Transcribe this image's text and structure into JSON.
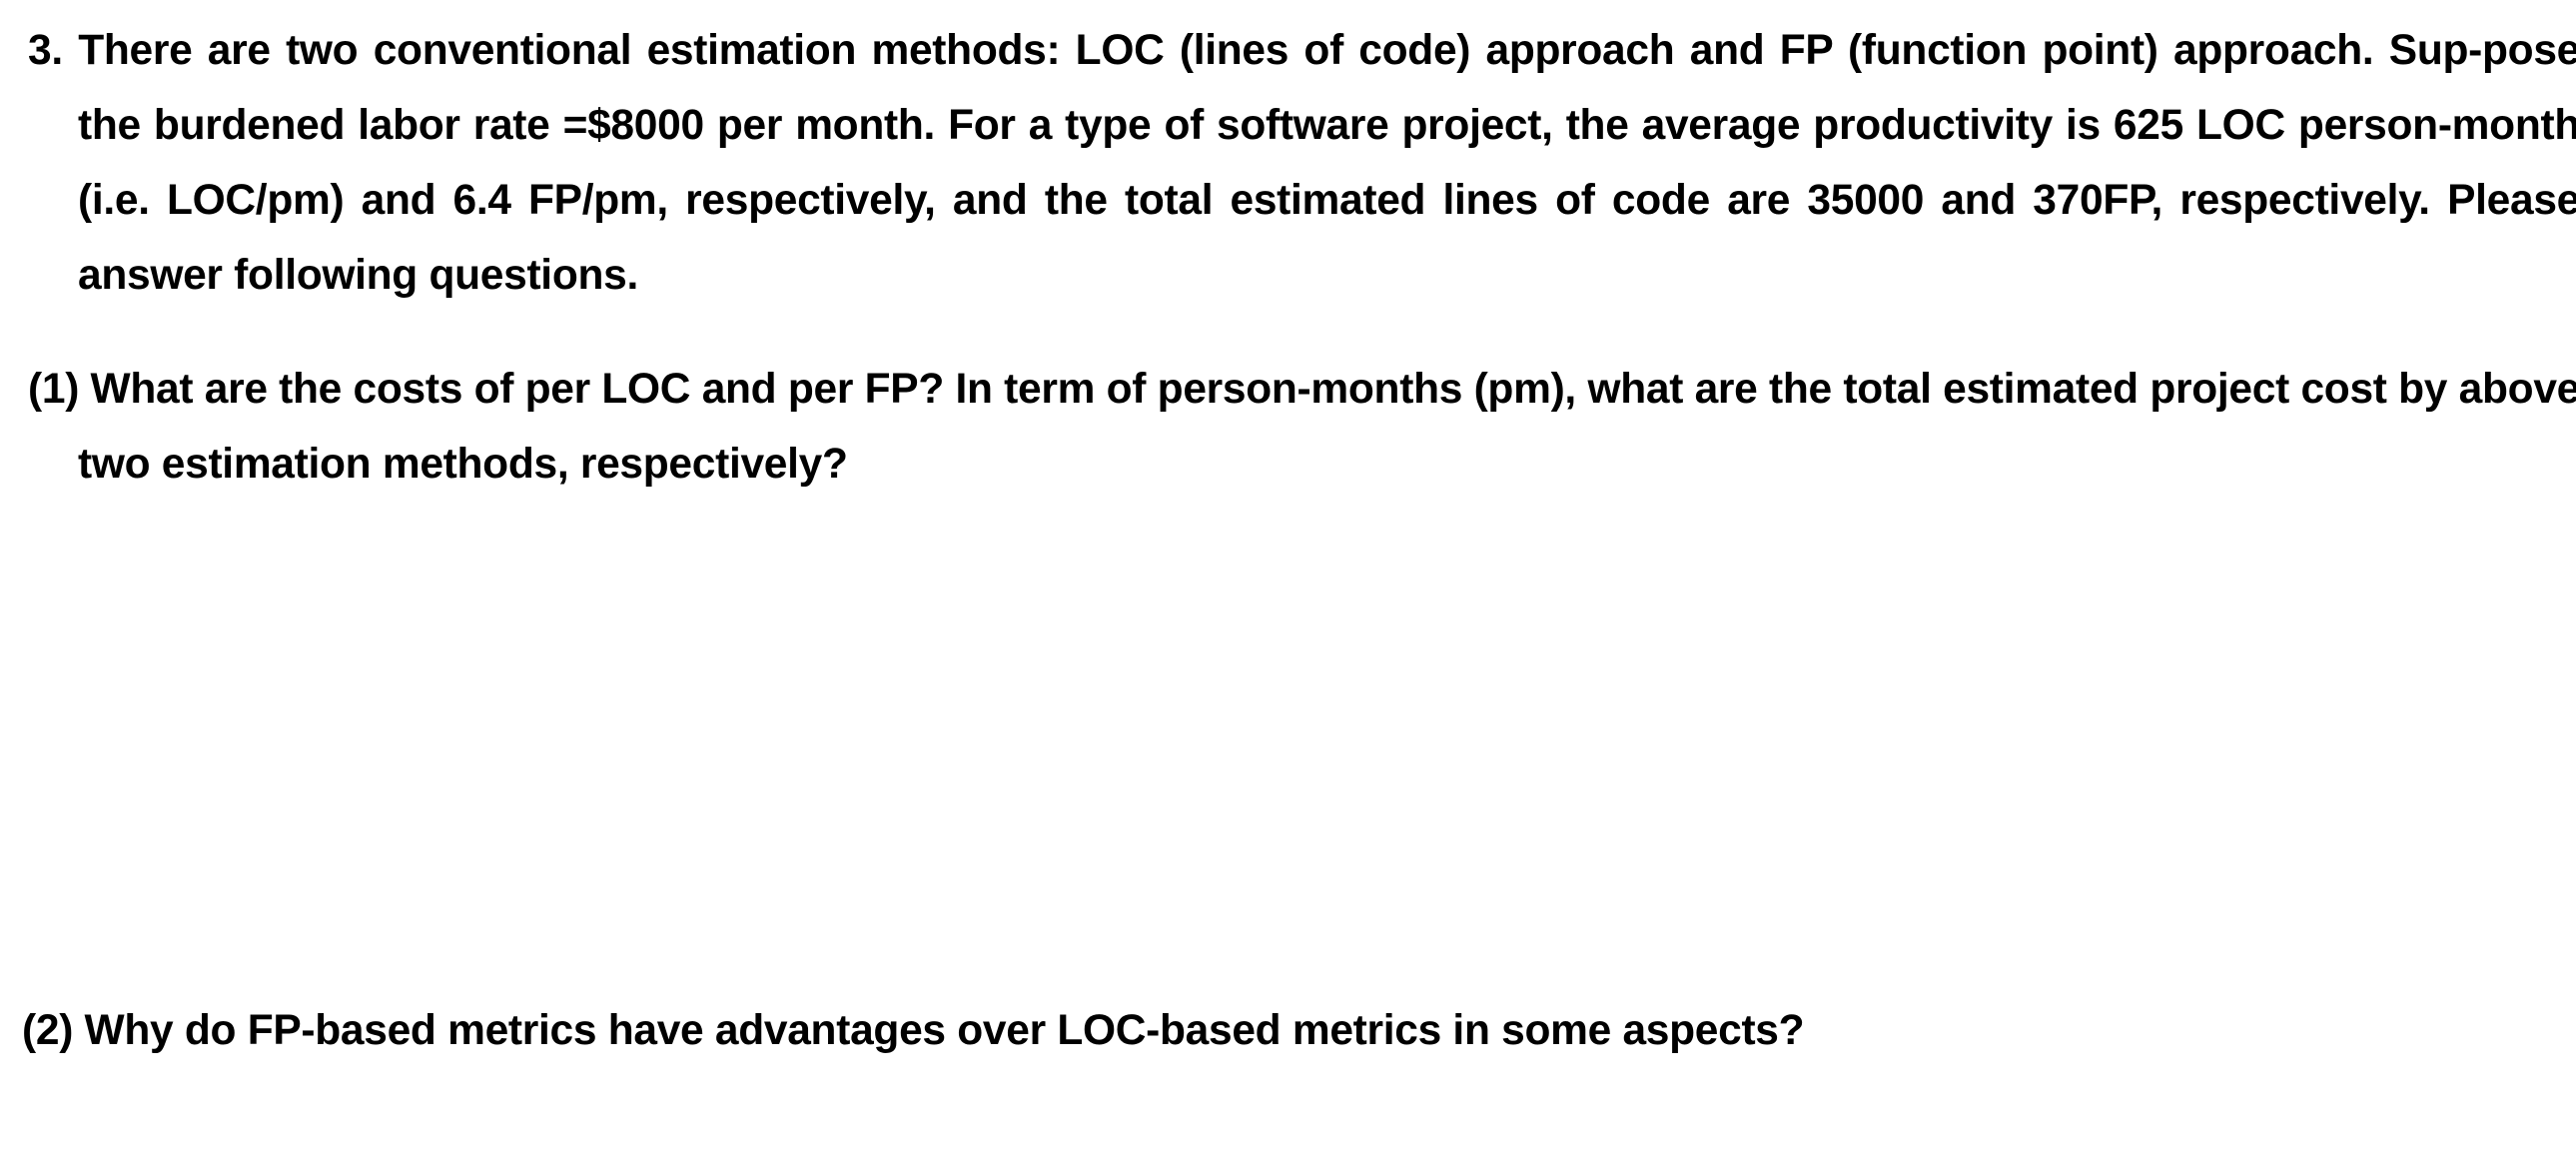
{
  "question3": {
    "text": "3. There are two conventional estimation methods: LOC (lines of code) approach and FP (function point) approach. Sup-pose the burdened labor rate =$8000 per month. For a type of software project, the average productivity is 625 LOC person-month (i.e. LOC/pm) and 6.4 FP/pm, respectively, and the total estimated lines of code are 35000 and 370FP, respectively. Please answer following questions."
  },
  "subquestions": [
    {
      "text": "(1) What are the costs of per LOC and per FP? In term of person-months (pm), what are the total estimated project cost by above two estimation methods, respectively?"
    },
    {
      "text": "(2) Why do FP-based metrics have advantages over LOC-based metrics in some aspects?"
    }
  ]
}
